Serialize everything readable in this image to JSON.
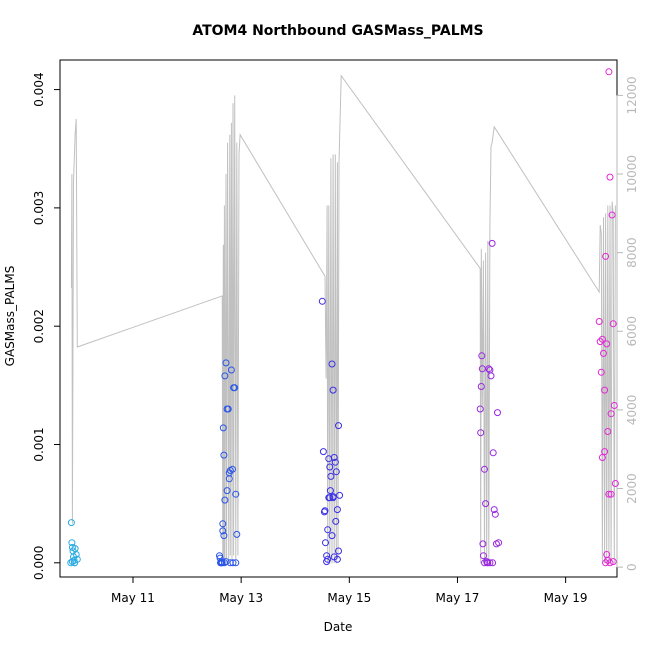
{
  "chart_data": {
    "type": "scatter",
    "title": "ATOM4 Northbound GASMass_PALMS",
    "xlabel": "Date",
    "ylabel": "GASMass_PALMS",
    "xlim": [
      9.65,
      19.95
    ],
    "ylim": [
      -0.00012,
      0.00425
    ],
    "y2lim": [
      -250,
      12900
    ],
    "x_ticks": [
      {
        "value": 11,
        "label": "May 11"
      },
      {
        "value": 13,
        "label": "May 13"
      },
      {
        "value": 15,
        "label": "May 15"
      },
      {
        "value": 17,
        "label": "May 17"
      },
      {
        "value": 19,
        "label": "May 19"
      }
    ],
    "y_ticks": [
      {
        "value": 0.0,
        "label": "0.000"
      },
      {
        "value": 0.001,
        "label": "0.001"
      },
      {
        "value": 0.002,
        "label": "0.002"
      },
      {
        "value": 0.003,
        "label": "0.003"
      },
      {
        "value": 0.004,
        "label": "0.004"
      }
    ],
    "y2_ticks": [
      {
        "value": 0,
        "label": "0"
      },
      {
        "value": 2000,
        "label": "2000"
      },
      {
        "value": 4000,
        "label": "4000"
      },
      {
        "value": 6000,
        "label": "6000"
      },
      {
        "value": 8000,
        "label": "8000"
      },
      {
        "value": 10000,
        "label": "10000"
      },
      {
        "value": 12000,
        "label": "12000"
      }
    ],
    "colors": {
      "day10": "#29abe2",
      "day12": "#2a55e8",
      "day14": "#3a2ee6",
      "day17": "#9a28e0",
      "day19": "#e228d6",
      "altitude_line": "#c0c0c0",
      "axis": "#000000",
      "secondary_axis": "#b8b8b8"
    },
    "series": [
      {
        "color_key": "day10",
        "x": [
          9.86,
          9.87,
          9.88,
          9.89,
          9.9,
          9.91,
          9.92,
          9.93,
          9.95,
          9.97,
          9.85,
          9.88,
          9.92
        ],
        "y": [
          0.00034,
          0.00017,
          0.00013,
          0.0001,
          5e-05,
          2e-05,
          0.0,
          0.00012,
          7e-05,
          3e-05,
          0.0,
          1e-05,
          0.0
        ]
      },
      {
        "color_key": "day12",
        "x": [
          12.6,
          12.61,
          12.62,
          12.63,
          12.64,
          12.65,
          12.66,
          12.67,
          12.68,
          12.69,
          12.7,
          12.72,
          12.74,
          12.76,
          12.78,
          12.8,
          12.82,
          12.84,
          12.86,
          12.88,
          12.9,
          12.92,
          12.66,
          12.7,
          12.74,
          12.78,
          12.85,
          12.9,
          12.62,
          12.68,
          12.72,
          12.8
        ],
        "y": [
          6e-05,
          4e-05,
          0.0,
          1e-05,
          0.0,
          0.0,
          0.00027,
          0.00114,
          0.00091,
          0.0,
          0.00158,
          0.00169,
          0.0013,
          0.0013,
          0.00076,
          0.00078,
          0.00163,
          0.00079,
          0.00148,
          0.00148,
          0.00058,
          0.00024,
          0.00033,
          0.00053,
          0.00061,
          0.00071,
          0.0,
          0.0,
          0.0,
          0.00023,
          1e-05,
          0.0
        ]
      },
      {
        "color_key": "day14",
        "x": [
          14.5,
          14.52,
          14.54,
          14.56,
          14.58,
          14.6,
          14.62,
          14.64,
          14.66,
          14.68,
          14.7,
          14.72,
          14.74,
          14.76,
          14.78,
          14.8,
          14.82,
          14.55,
          14.6,
          14.65,
          14.7,
          14.75,
          14.8,
          14.58,
          14.62,
          14.68,
          14.72,
          14.78,
          14.64,
          14.7
        ],
        "y": [
          0.00221,
          0.00094,
          0.00043,
          0.00017,
          6e-05,
          3e-05,
          0.00088,
          0.00081,
          0.00073,
          0.00168,
          0.00146,
          0.00089,
          0.00085,
          0.00077,
          0.00045,
          0.00116,
          0.00057,
          0.00044,
          0.00028,
          0.00061,
          0.00055,
          0.00035,
          0.0001,
          1e-05,
          0.00055,
          0.00023,
          5e-05,
          3e-05,
          0.00055,
          0.00056
        ]
      },
      {
        "color_key": "day17",
        "x": [
          17.42,
          17.43,
          17.44,
          17.45,
          17.46,
          17.47,
          17.48,
          17.5,
          17.52,
          17.54,
          17.56,
          17.58,
          17.6,
          17.62,
          17.64,
          17.66,
          17.68,
          17.7,
          17.72,
          17.74,
          17.76,
          17.5,
          17.55,
          17.6,
          17.65
        ],
        "y": [
          0.0013,
          0.0011,
          0.00149,
          0.00175,
          0.00164,
          0.00016,
          6e-05,
          0.00079,
          0.0005,
          1e-05,
          0.0,
          0.00164,
          0.00163,
          0.00158,
          0.0027,
          0.00093,
          0.00045,
          0.00041,
          0.00016,
          0.00127,
          0.00017,
          0.0,
          0.0,
          0.0,
          0.0
        ]
      },
      {
        "color_key": "day19",
        "x": [
          19.62,
          19.64,
          19.66,
          19.68,
          19.7,
          19.72,
          19.74,
          19.76,
          19.78,
          19.8,
          19.82,
          19.84,
          19.86,
          19.88,
          19.9,
          19.92,
          19.68,
          19.72,
          19.76,
          19.8,
          19.84,
          19.88,
          19.74,
          19.78,
          19.82
        ],
        "y": [
          0.00204,
          0.00187,
          0.00161,
          0.00189,
          0.00177,
          0.00146,
          0.00259,
          0.00185,
          0.00111,
          0.00415,
          0.00326,
          0.00126,
          0.00294,
          0.00202,
          0.00133,
          0.00067,
          0.00089,
          0.00094,
          7e-05,
          0.00058,
          0.00058,
          1e-05,
          0.0,
          2e-05,
          0.0
        ]
      }
    ],
    "altitude_line": {
      "color_key": "altitude_line",
      "points": [
        [
          9.86,
          7100
        ],
        [
          9.87,
          10000
        ],
        [
          9.88,
          1100
        ],
        [
          9.9,
          9800
        ],
        [
          9.93,
          11000
        ],
        [
          9.95,
          11400
        ],
        [
          9.97,
          5600
        ],
        [
          12.65,
          6900
        ],
        [
          12.66,
          100
        ],
        [
          12.67,
          8200
        ],
        [
          12.68,
          100
        ],
        [
          12.69,
          9200
        ],
        [
          12.7,
          100
        ],
        [
          12.72,
          10000
        ],
        [
          12.73,
          200
        ],
        [
          12.75,
          10800
        ],
        [
          12.77,
          200
        ],
        [
          12.79,
          11000
        ],
        [
          12.8,
          300
        ],
        [
          12.82,
          11300
        ],
        [
          12.83,
          200
        ],
        [
          12.85,
          11800
        ],
        [
          12.86,
          300
        ],
        [
          12.88,
          12000
        ],
        [
          12.9,
          200
        ],
        [
          12.92,
          10800
        ],
        [
          12.94,
          300
        ],
        [
          12.96,
          10500
        ],
        [
          12.98,
          11000
        ],
        [
          14.55,
          7400
        ],
        [
          14.57,
          4800
        ],
        [
          14.59,
          9200
        ],
        [
          14.6,
          100
        ],
        [
          14.62,
          9200
        ],
        [
          14.64,
          100
        ],
        [
          14.66,
          10400
        ],
        [
          14.68,
          100
        ],
        [
          14.7,
          10500
        ],
        [
          14.72,
          100
        ],
        [
          14.74,
          10500
        ],
        [
          14.76,
          100
        ],
        [
          14.78,
          10300
        ],
        [
          14.79,
          200
        ],
        [
          14.81,
          10300
        ],
        [
          14.85,
          12500
        ],
        [
          17.42,
          7600
        ],
        [
          17.43,
          100
        ],
        [
          17.44,
          8100
        ],
        [
          17.46,
          4100
        ],
        [
          17.48,
          7800
        ],
        [
          17.5,
          100
        ],
        [
          17.52,
          8000
        ],
        [
          17.54,
          100
        ],
        [
          17.56,
          8300
        ],
        [
          17.58,
          100
        ],
        [
          17.6,
          8700
        ],
        [
          17.62,
          10700
        ],
        [
          17.64,
          10800
        ],
        [
          17.68,
          11200
        ],
        [
          19.62,
          7000
        ],
        [
          19.64,
          8700
        ],
        [
          19.66,
          8500
        ],
        [
          19.68,
          100
        ],
        [
          19.7,
          8900
        ],
        [
          19.72,
          100
        ],
        [
          19.74,
          9000
        ],
        [
          19.76,
          100
        ],
        [
          19.78,
          9200
        ],
        [
          19.8,
          100
        ],
        [
          19.82,
          9200
        ],
        [
          19.84,
          100
        ],
        [
          19.86,
          9300
        ],
        [
          19.88,
          9000
        ],
        [
          19.9,
          100
        ],
        [
          19.92,
          9200
        ]
      ]
    }
  }
}
